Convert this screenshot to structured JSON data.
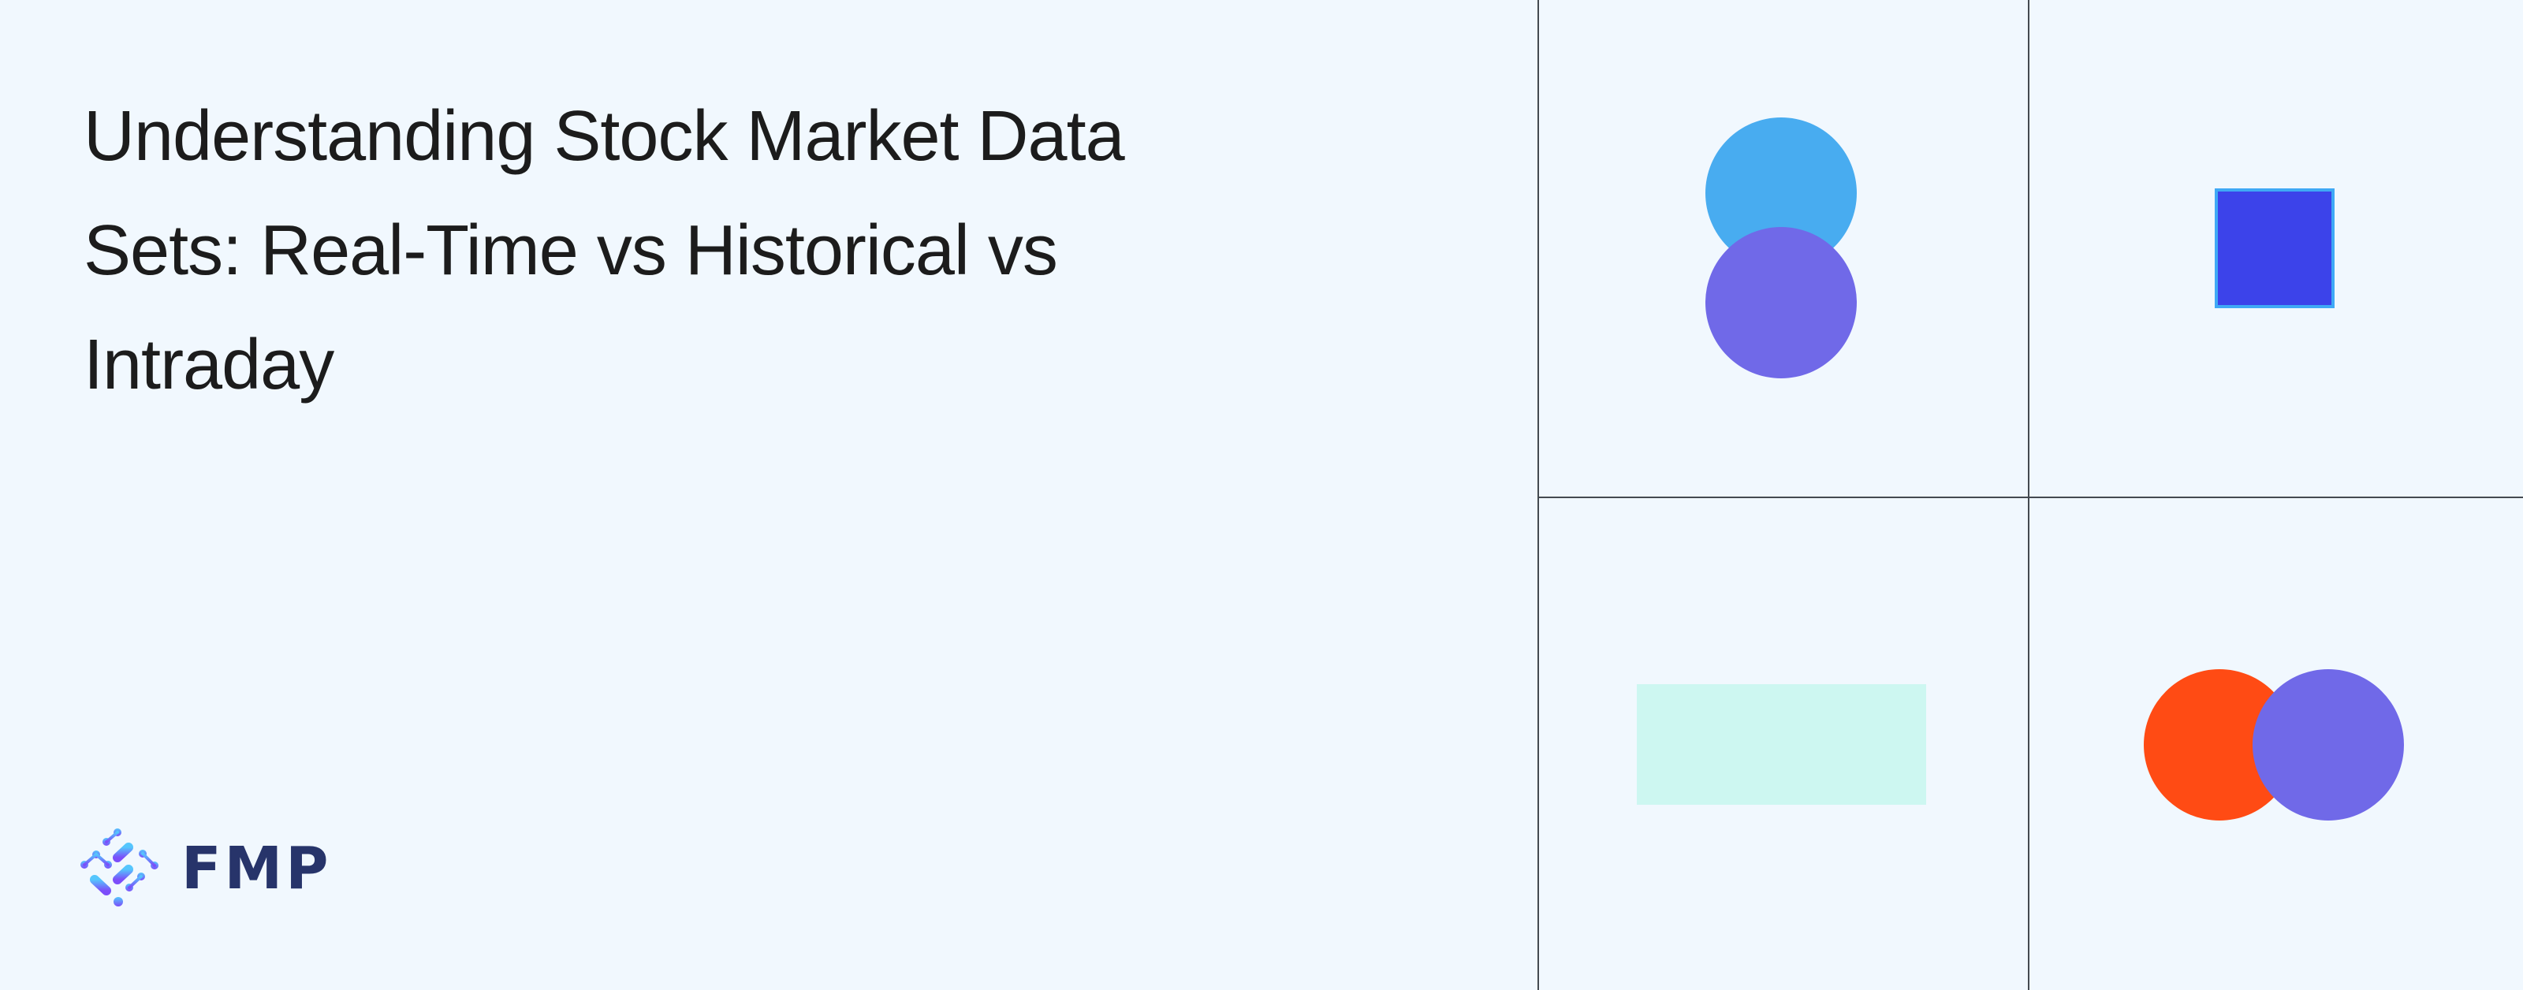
{
  "title": {
    "lines": [
      "Understanding Stock Market Data",
      "Sets: Real-Time vs Historical vs",
      "Intraday"
    ]
  },
  "logo": {
    "text": "FMP",
    "icon": "fmp-logo-icon",
    "text_color": "#27346a"
  },
  "colors": {
    "background": "#f1f8fe",
    "grid_line": "#444a50",
    "sky_blue": "#48acf0",
    "purple": "#7069e8",
    "royal_blue": "#3c43ea",
    "square_border": "#3fa9f5",
    "mint": "#cdf7f1",
    "orange_red": "#ff4b14"
  }
}
